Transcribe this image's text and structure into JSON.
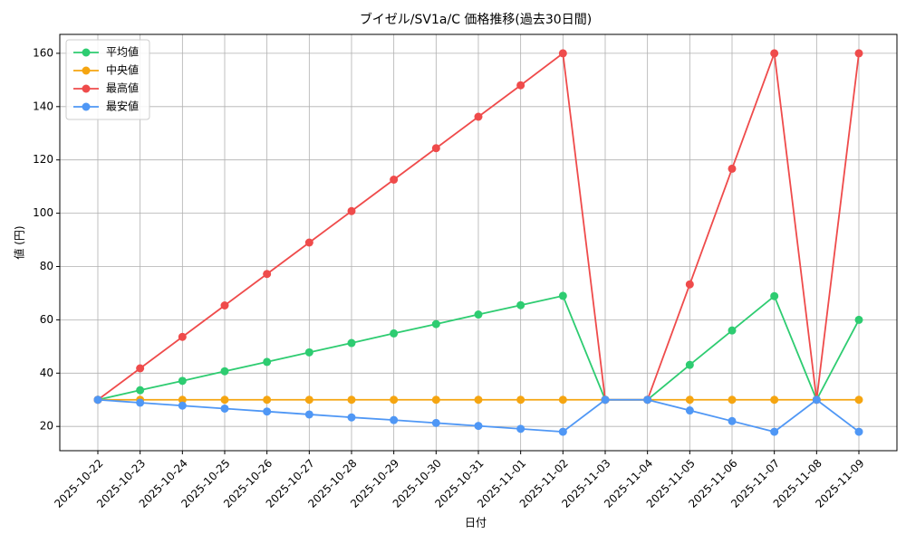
{
  "chart_data": {
    "type": "line",
    "title": "ブイゼル/SV1a/C 価格推移(過去30日間)",
    "x_label": "日付",
    "y_label": "値 (円)",
    "categories": [
      "2025-10-22",
      "2025-10-23",
      "2025-10-24",
      "2025-10-25",
      "2025-10-26",
      "2025-10-27",
      "2025-10-28",
      "2025-10-29",
      "2025-10-30",
      "2025-10-31",
      "2025-11-01",
      "2025-11-02",
      "2025-11-03",
      "2025-11-04",
      "2025-11-05",
      "2025-11-06",
      "2025-11-07",
      "2025-11-08",
      "2025-11-09"
    ],
    "series": [
      {
        "name": "平均値",
        "color": "#2ecc71",
        "values": [
          30,
          33.6,
          37.1,
          40.7,
          44.2,
          47.8,
          51.3,
          54.9,
          58.4,
          62,
          65.5,
          69,
          30,
          30,
          43.1,
          56,
          68.9,
          30,
          60
        ]
      },
      {
        "name": "中央値",
        "color": "#f5a511",
        "values": [
          30,
          30,
          30,
          30,
          30,
          30,
          30,
          30,
          30,
          30,
          30,
          30,
          30,
          30,
          30,
          30,
          30,
          30,
          30
        ]
      },
      {
        "name": "最高値",
        "color": "#ef4b4b",
        "values": [
          30,
          41.8,
          53.6,
          65.4,
          77.2,
          89,
          100.8,
          112.6,
          124.4,
          136.2,
          148,
          160,
          30,
          30,
          73.3,
          116.7,
          160,
          30,
          160
        ]
      },
      {
        "name": "最安値",
        "color": "#4f97f5",
        "values": [
          30,
          28.9,
          27.8,
          26.7,
          25.6,
          24.5,
          23.4,
          22.4,
          21.3,
          20.2,
          19.1,
          18,
          30,
          30,
          26,
          22,
          18,
          30,
          18
        ]
      }
    ],
    "ylim": [
      10.9,
      167.1
    ],
    "yticks": [
      20,
      40,
      60,
      80,
      100,
      120,
      140,
      160
    ],
    "grid": true,
    "legend": "upper-left"
  }
}
